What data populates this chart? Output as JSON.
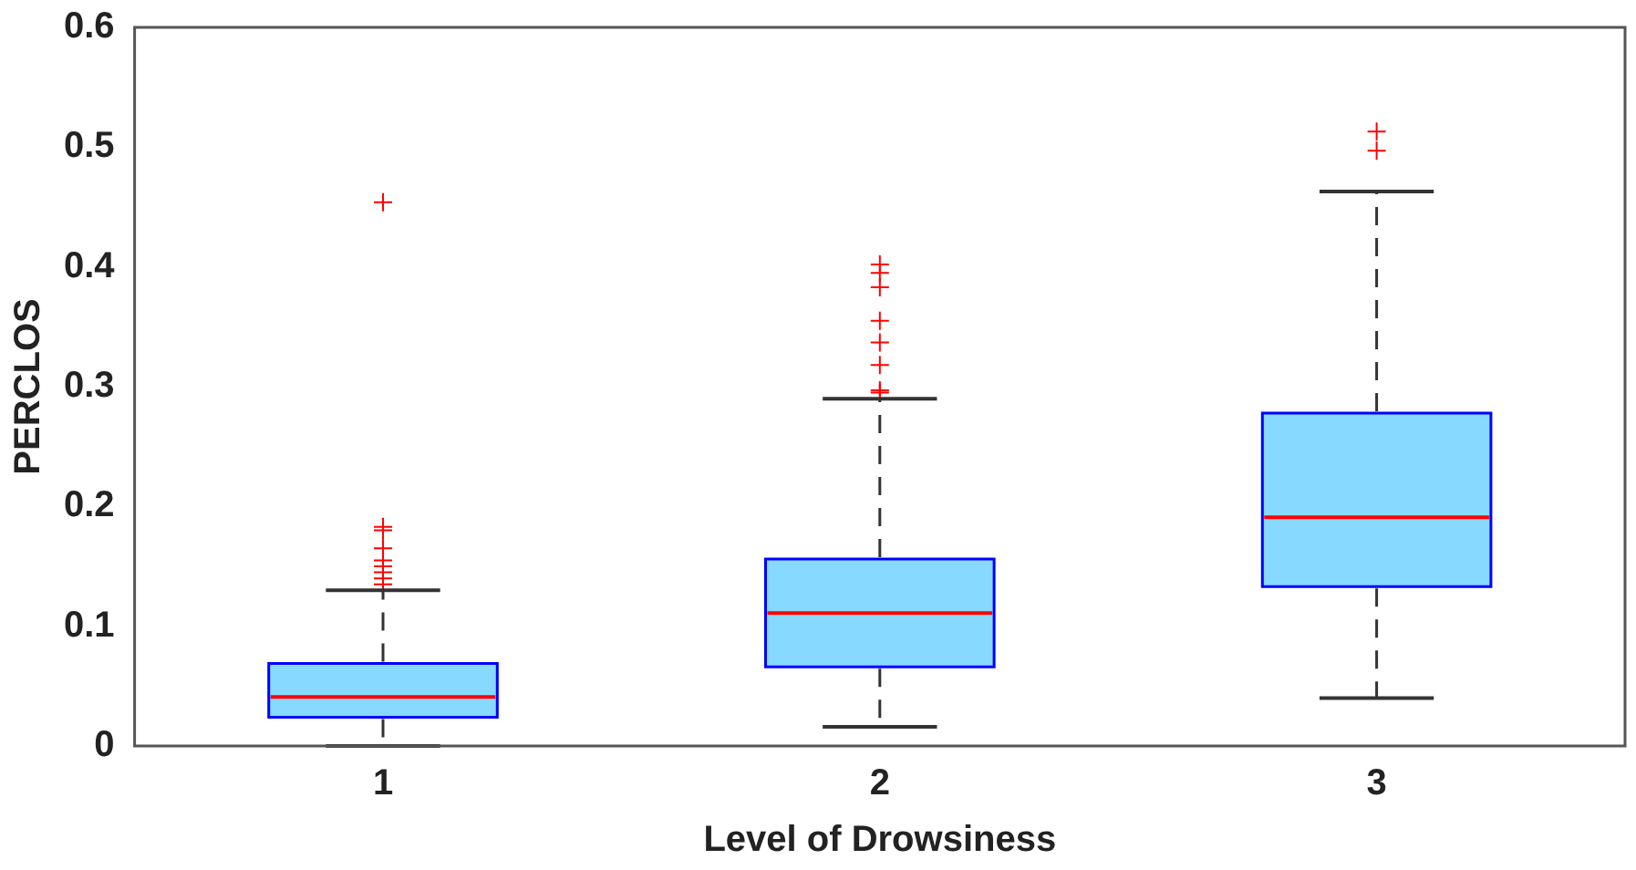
{
  "chart_data": {
    "type": "box",
    "xlabel": "Level of Drowsiness",
    "ylabel": "PERCLOS",
    "categories": [
      "1",
      "2",
      "3"
    ],
    "boxes": [
      {
        "low": 0,
        "q1": 0.024,
        "median": 0.041,
        "q3": 0.069,
        "high": 0.13,
        "outliers": [
          0.135,
          0.14,
          0.145,
          0.15,
          0.155,
          0.165,
          0.18,
          0.183,
          0.454
        ]
      },
      {
        "low": 0.016,
        "q1": 0.066,
        "median": 0.111,
        "q3": 0.156,
        "high": 0.29,
        "outliers": [
          0.295,
          0.297,
          0.318,
          0.337,
          0.355,
          0.383,
          0.395,
          0.402
        ]
      },
      {
        "low": 0.04,
        "q1": 0.133,
        "median": 0.191,
        "q3": 0.278,
        "high": 0.463,
        "outliers": [
          0.497,
          0.513
        ]
      }
    ],
    "color": "#87d9ff",
    "ylim": [
      0,
      0.6
    ],
    "yticks": [
      0,
      0.1,
      0.2,
      0.3,
      0.4,
      0.5,
      0.6
    ],
    "grid": false
  }
}
